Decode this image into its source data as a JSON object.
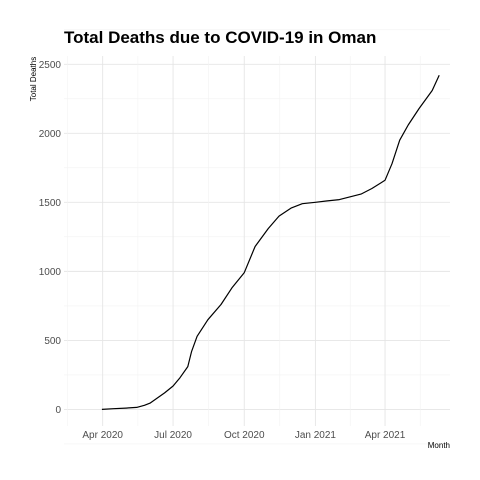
{
  "chart_data": {
    "type": "line",
    "title": "Total Deaths due to COVID-19 in Oman",
    "xlabel": "Month",
    "ylabel": "Total Deaths",
    "x_tick_labels": [
      "Apr 2020",
      "Jul 2020",
      "Oct 2020",
      "Jan 2021",
      "Apr 2021"
    ],
    "y_tick_labels": [
      "0",
      "500",
      "1000",
      "1500",
      "2000",
      "2500"
    ],
    "ylim": [
      -120,
      2560
    ],
    "xlim": [
      "2020-02-11",
      "2021-06-24"
    ],
    "grid": true,
    "line_color": "#000000",
    "series": [
      {
        "x": [
          "2020-03-31",
          "2020-04-15",
          "2020-05-01",
          "2020-05-15",
          "2020-05-25",
          "2020-06-01",
          "2020-06-10",
          "2020-06-20",
          "2020-07-01",
          "2020-07-10",
          "2020-07-20",
          "2020-07-25",
          "2020-08-01",
          "2020-08-15",
          "2020-09-01",
          "2020-09-15",
          "2020-10-01",
          "2020-10-15",
          "2020-11-01",
          "2020-11-15",
          "2020-12-01",
          "2020-12-15",
          "2021-01-01",
          "2021-01-15",
          "2021-02-01",
          "2021-02-15",
          "2021-03-01",
          "2021-03-15",
          "2021-04-01",
          "2021-04-10",
          "2021-04-20",
          "2021-05-01",
          "2021-05-15",
          "2021-06-01",
          "2021-06-10"
        ],
        "y": [
          0,
          5,
          10,
          15,
          30,
          45,
          80,
          120,
          170,
          230,
          310,
          420,
          530,
          650,
          760,
          880,
          990,
          1180,
          1310,
          1400,
          1460,
          1490,
          1500,
          1510,
          1520,
          1540,
          1560,
          1600,
          1660,
          1780,
          1950,
          2060,
          2180,
          2310,
          2420
        ]
      }
    ]
  }
}
